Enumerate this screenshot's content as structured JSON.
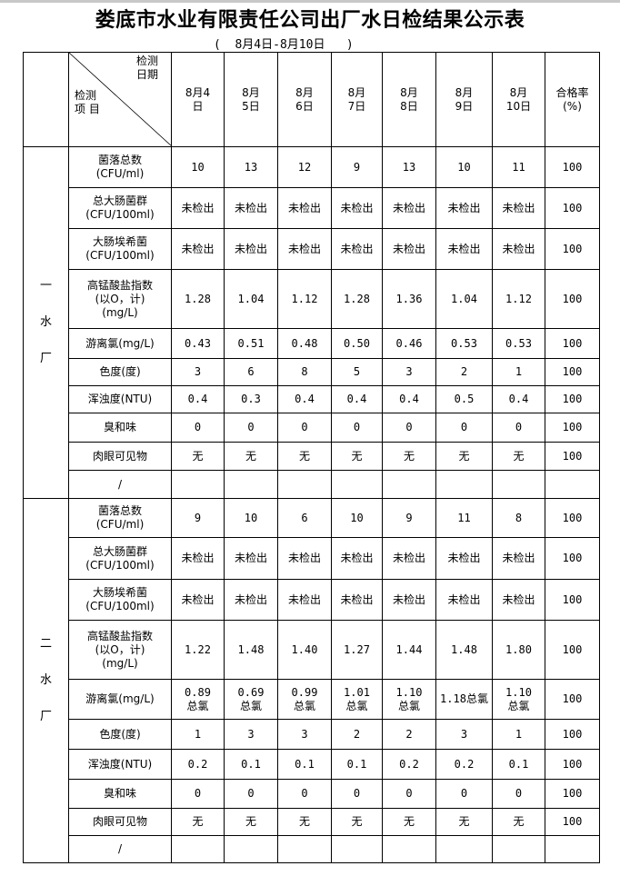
{
  "title": "娄底市水业有限责任公司出厂水日检结果公示表",
  "subtitle": "(  8月4日-8月10日   )",
  "header": {
    "diag_top": [
      "检测",
      "日期"
    ],
    "diag_bottom": [
      "检测",
      "项 目"
    ],
    "dates": [
      [
        "8月4",
        "日"
      ],
      [
        "8月",
        "5日"
      ],
      [
        "8月",
        "6日"
      ],
      [
        "8月",
        "7日"
      ],
      [
        "8月",
        "8日"
      ],
      [
        "8月",
        "9日"
      ],
      [
        "8月",
        "10日"
      ]
    ],
    "rate": [
      "合格率",
      "(%)"
    ]
  },
  "plants": [
    {
      "name": [
        "一",
        "水",
        "厂"
      ],
      "rows": [
        {
          "item": [
            "菌落总数",
            "(CFU/ml)"
          ],
          "values": [
            "10",
            "13",
            "12",
            "9",
            "13",
            "10",
            "11"
          ],
          "rate": "100"
        },
        {
          "item": [
            "总大肠菌群",
            "(CFU/100ml)"
          ],
          "values": [
            "未检出",
            "未检出",
            "未检出",
            "未检出",
            "未检出",
            "未检出",
            "未检出"
          ],
          "rate": "100"
        },
        {
          "item": [
            "大肠埃希菌",
            "(CFU/100ml)"
          ],
          "values": [
            "未检出",
            "未检出",
            "未检出",
            "未检出",
            "未检出",
            "未检出",
            "未检出"
          ],
          "rate": "100"
        },
        {
          "item": [
            "高锰酸盐指数",
            "(以O，计)",
            "(mg/L)"
          ],
          "values": [
            "1.28",
            "1.04",
            "1.12",
            "1.28",
            "1.36",
            "1.04",
            "1.12"
          ],
          "rate": "100"
        },
        {
          "item": [
            "游离氯(mg/L)"
          ],
          "values": [
            "0.43",
            "0.51",
            "0.48",
            "0.50",
            "0.46",
            "0.53",
            "0.53"
          ],
          "rate": "100"
        },
        {
          "item": [
            "色度(度)"
          ],
          "values": [
            "3",
            "6",
            "8",
            "5",
            "3",
            "2",
            "1"
          ],
          "rate": "100"
        },
        {
          "item": [
            "浑浊度(NTU)"
          ],
          "values": [
            "0.4",
            "0.3",
            "0.4",
            "0.4",
            "0.4",
            "0.5",
            "0.4"
          ],
          "rate": "100"
        },
        {
          "item": [
            "臭和味"
          ],
          "values": [
            "0",
            "0",
            "0",
            "0",
            "0",
            "0",
            "0"
          ],
          "rate": "100"
        },
        {
          "item": [
            "肉眼可见物"
          ],
          "values": [
            "无",
            "无",
            "无",
            "无",
            "无",
            "无",
            "无"
          ],
          "rate": "100"
        },
        {
          "item": [
            "/"
          ],
          "values": [
            "",
            "",
            "",
            "",
            "",
            "",
            ""
          ],
          "rate": ""
        }
      ]
    },
    {
      "name": [
        "二",
        "水",
        "厂"
      ],
      "rows": [
        {
          "item": [
            "菌落总数",
            "(CFU/ml)"
          ],
          "values": [
            "9",
            "10",
            "6",
            "10",
            "9",
            "11",
            "8"
          ],
          "rate": "100"
        },
        {
          "item": [
            "总大肠菌群",
            "(CFU/100ml)"
          ],
          "values": [
            "未检出",
            "未检出",
            "未检出",
            "未检出",
            "未检出",
            "未检出",
            "未检出"
          ],
          "rate": "100"
        },
        {
          "item": [
            "大肠埃希菌",
            "(CFU/100ml)"
          ],
          "values": [
            "未检出",
            "未检出",
            "未检出",
            "未检出",
            "未检出",
            "未检出",
            "未检出"
          ],
          "rate": "100"
        },
        {
          "item": [
            "高锰酸盐指数",
            "(以O，计)",
            "(mg/L)"
          ],
          "values": [
            "1.22",
            "1.48",
            "1.40",
            "1.27",
            "1.44",
            "1.48",
            "1.80"
          ],
          "rate": "100"
        },
        {
          "item": [
            "游离氯(mg/L)"
          ],
          "values": [
            "0.89 总氯",
            "0.69 总氯",
            "0.99 总氯",
            "1.01 总氯",
            "1.10 总氯",
            "1.18总氯",
            "1.10 总氯"
          ],
          "rate": "100"
        },
        {
          "item": [
            "色度(度)"
          ],
          "values": [
            "1",
            "3",
            "3",
            "2",
            "2",
            "3",
            "1"
          ],
          "rate": "100"
        },
        {
          "item": [
            "浑浊度(NTU)"
          ],
          "values": [
            "0.2",
            "0.1",
            "0.1",
            "0.1",
            "0.2",
            "0.2",
            "0.1"
          ],
          "rate": "100"
        },
        {
          "item": [
            "臭和味"
          ],
          "values": [
            "0",
            "0",
            "0",
            "0",
            "0",
            "0",
            "0"
          ],
          "rate": "100"
        },
        {
          "item": [
            "肉眼可见物"
          ],
          "values": [
            "无",
            "无",
            "无",
            "无",
            "无",
            "无",
            "无"
          ],
          "rate": "100"
        },
        {
          "item": [
            "/"
          ],
          "values": [
            "",
            "",
            "",
            "",
            "",
            "",
            ""
          ],
          "rate": ""
        }
      ]
    }
  ]
}
